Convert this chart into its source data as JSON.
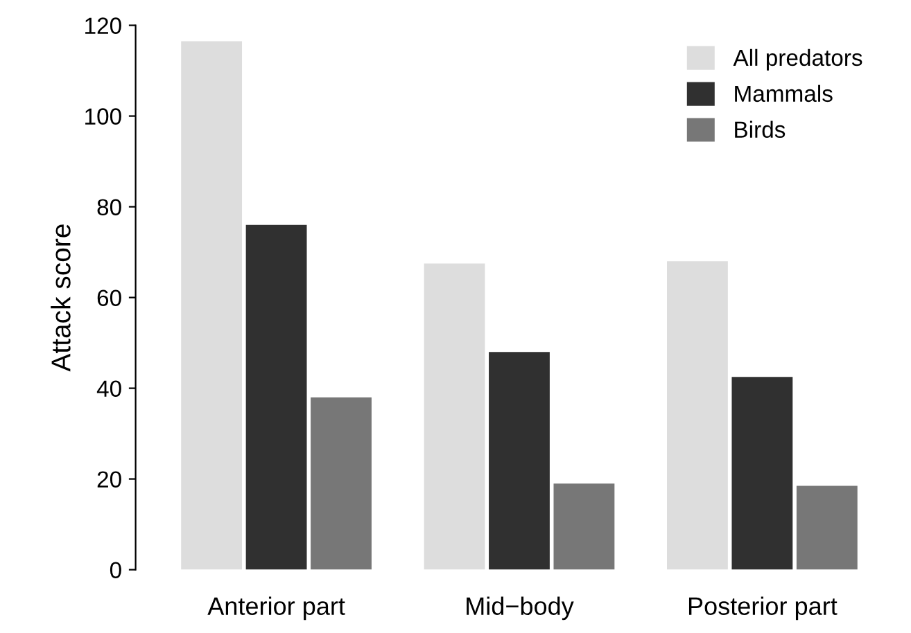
{
  "chart_data": {
    "type": "bar",
    "ylabel": "Attack score",
    "categories": [
      "Anterior part",
      "Mid−body",
      "Posterior part"
    ],
    "series": [
      {
        "name": "All predators",
        "color": "#dddddd",
        "values": [
          116.5,
          67.5,
          68
        ]
      },
      {
        "name": "Mammals",
        "color": "#303030",
        "values": [
          76,
          48,
          42.5
        ]
      },
      {
        "name": "Birds",
        "color": "#777777",
        "values": [
          38,
          19,
          18.5
        ]
      }
    ],
    "ylim": [
      0,
      120
    ],
    "yticks": [
      0,
      20,
      40,
      60,
      80,
      100,
      120
    ],
    "grid": false,
    "legend": "top right"
  }
}
